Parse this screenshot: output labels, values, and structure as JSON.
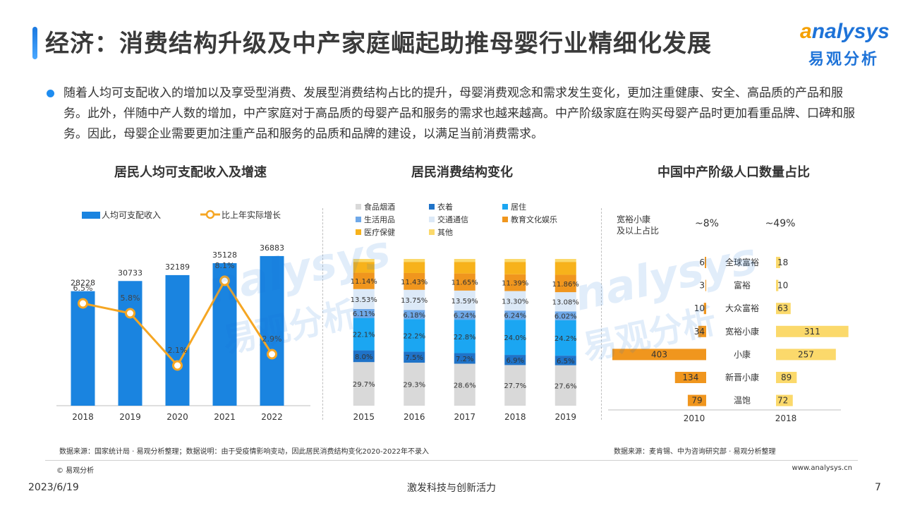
{
  "header": {
    "title": "经济：消费结构升级及中产家庭崛起助推母婴行业精细化发展",
    "logo_en_a": "a",
    "logo_en_rest": "nalysys",
    "logo_cn": "易观分析"
  },
  "intro": "随着人均可支配收入的增加以及享受型消费、发展型消费结构占比的提升，母婴消费观念和需求发生变化，更加注重健康、安全、高品质的产品和服务。此外，伴随中产人数的增加，中产家庭对于高品质的母婴产品和服务的需求也越来越高。中产阶级家庭在购买母婴产品时更加看重品牌、口碑和服务。因此，母婴企业需要更加注重产品和服务的品质和品牌的建设，以满足当前消费需求。",
  "chart_data": [
    {
      "type": "bar",
      "title": "居民人均可支配收入及增速",
      "categories": [
        "2018",
        "2019",
        "2020",
        "2021",
        "2022"
      ],
      "series": [
        {
          "name": "人均可支配收入",
          "type": "bar",
          "values": [
            28228,
            30733,
            32189,
            35128,
            36883
          ],
          "color": "#1a84e0"
        },
        {
          "name": "比上年实际增长",
          "type": "line",
          "values": [
            6.5,
            5.8,
            2.1,
            8.1,
            2.9
          ],
          "labels": [
            "6.5%",
            "5.8%",
            "2.1%",
            "8.1%",
            "2.9%"
          ],
          "color": "#f5a623"
        }
      ],
      "ylim": [
        0,
        40000
      ]
    },
    {
      "type": "bar",
      "stacked": true,
      "title": "居民消费结构变化",
      "categories": [
        "2015",
        "2016",
        "2017",
        "2018",
        "2019"
      ],
      "series": [
        {
          "name": "食品烟酒",
          "values": [
            29.7,
            29.3,
            28.6,
            27.7,
            27.6
          ],
          "labels": [
            "29.7%",
            "29.3%",
            "28.6%",
            "27.7%",
            "27.6%"
          ],
          "color": "#d9d9d9"
        },
        {
          "name": "衣着",
          "values": [
            8.0,
            7.5,
            7.2,
            6.9,
            6.5
          ],
          "labels": [
            "8.0%",
            "7.5%",
            "7.2%",
            "6.9%",
            "6.5%"
          ],
          "color": "#1f73c8"
        },
        {
          "name": "居住",
          "values": [
            22.1,
            22.2,
            22.8,
            24.0,
            24.2
          ],
          "labels": [
            "22.1%",
            "22.2%",
            "22.8%",
            "24.0%",
            "24.2%"
          ],
          "color": "#1ba6f2"
        },
        {
          "name": "生活用品",
          "values": [
            6.11,
            6.18,
            6.24,
            6.24,
            6.02
          ],
          "labels": [
            "6.11%",
            "6.18%",
            "6.24%",
            "6.24%",
            "6.02%"
          ],
          "color": "#6fa8e8"
        },
        {
          "name": "交通通信",
          "values": [
            13.53,
            13.75,
            13.59,
            13.3,
            13.08
          ],
          "labels": [
            "13.53%",
            "13.75%",
            "13.59%",
            "13.30%",
            "13.08%"
          ],
          "color": "#dce9f7"
        },
        {
          "name": "教育文化娱乐",
          "values": [
            11.14,
            11.43,
            11.65,
            11.39,
            11.86
          ],
          "labels": [
            "11.14%",
            "11.43%",
            "11.65%",
            "11.39%",
            "11.86%"
          ],
          "color": "#f0961e"
        },
        {
          "name": "医疗保健",
          "values": [
            7.4,
            7.6,
            7.9,
            8.5,
            8.8
          ],
          "color": "#f7b21b"
        },
        {
          "name": "其他",
          "values": [
            2.0,
            2.0,
            2.0,
            2.0,
            2.0
          ],
          "color": "#fbd96b"
        }
      ],
      "ylim": [
        0,
        100
      ]
    },
    {
      "type": "bar",
      "orientation": "horizontal",
      "title": "中国中产阶级人口数量占比",
      "categories": [
        "全球富裕",
        "富裕",
        "大众富裕",
        "宽裕小康",
        "小康",
        "新晋小康",
        "温饱"
      ],
      "series": [
        {
          "name": "2010",
          "values": [
            6,
            3,
            10,
            34,
            403,
            134,
            79
          ],
          "color": "#f0961e"
        },
        {
          "name": "2018",
          "values": [
            18,
            10,
            63,
            311,
            257,
            89,
            72
          ],
          "color": "#fbd96b"
        }
      ],
      "header": {
        "label": "宽裕小康\n及以上占比",
        "label_line1": "宽裕小康",
        "label_line2": "及以上占比",
        "share_2010": "~8%",
        "share_2018": "~49%"
      }
    }
  ],
  "sources": {
    "left": "数据来源：国家统计局 · 易观分析整理；数据说明：由于受疫情影响变动，因此居民消费结构变化2020-2022年不录入",
    "right": "数据来源：麦肯锡、中为咨询研究部 · 易观分析整理"
  },
  "footer": {
    "copyright": "© 易观分析",
    "website": "www.analysys.cn",
    "date": "2023/6/19",
    "slogan": "激发科技与创新活力",
    "page": "7"
  }
}
